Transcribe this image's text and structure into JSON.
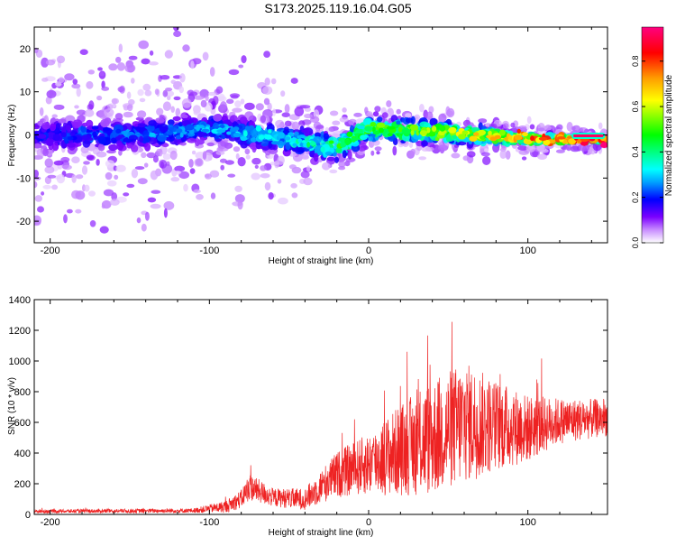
{
  "title": "S173.2025.119.16.04.G05",
  "chart_data": [
    {
      "type": "heatmap",
      "xlabel": "Height of straight line (km)",
      "ylabel": "Frequency (Hz)",
      "xlim": [
        -210,
        150
      ],
      "ylim": [
        -25,
        25
      ],
      "xticks": [
        -200,
        -100,
        0,
        100
      ],
      "yticks": [
        -20,
        -10,
        0,
        10,
        20
      ],
      "colorbar": {
        "label": "Normalized spectral amplitude",
        "range": [
          0,
          0.95
        ],
        "ticks": [
          0.0,
          0.2,
          0.4,
          0.6,
          0.8
        ],
        "tick_labels": [
          "0.0",
          "0.2",
          "0.4",
          "0.6",
          "0.8"
        ],
        "colors": [
          "#ffffff",
          "#c88cff",
          "#7a00ff",
          "#0000ff",
          "#00a0ff",
          "#00ffff",
          "#00ff80",
          "#00ff00",
          "#80ff00",
          "#ffff00",
          "#ffa000",
          "#ff0000",
          "#ff0080"
        ]
      },
      "ridge_profile": {
        "x": [
          -210,
          -150,
          -100,
          -50,
          -20,
          0,
          50,
          100,
          150
        ],
        "center_hz": [
          0,
          0,
          1.5,
          -1,
          -3,
          1.5,
          0.5,
          -1,
          -1
        ],
        "peak_amplitude": [
          0.25,
          0.3,
          0.3,
          0.35,
          0.5,
          0.55,
          0.6,
          0.8,
          0.92
        ],
        "halfwidth_hz": [
          4,
          4,
          4,
          4,
          4,
          3.5,
          3,
          1.5,
          0.8
        ],
        "scatter_halfwidth_hz": [
          25,
          22,
          20,
          12,
          7,
          6,
          6,
          4,
          3
        ]
      }
    },
    {
      "type": "line",
      "xlabel": "Height of straight line (km)",
      "ylabel": "SNR (10 * v/v)",
      "xlim": [
        -210,
        150
      ],
      "ylim": [
        0,
        1400
      ],
      "xticks": [
        -200,
        -100,
        0,
        100
      ],
      "yticks": [
        0,
        200,
        400,
        600,
        800,
        1000,
        1200,
        1400
      ],
      "color": "#ee2222",
      "envelope": {
        "x": [
          -210,
          -110,
          -90,
          -80,
          -75,
          -60,
          -40,
          -20,
          0,
          20,
          40,
          60,
          80,
          100,
          120,
          150
        ],
        "mean": [
          20,
          25,
          50,
          100,
          180,
          110,
          100,
          260,
          330,
          420,
          500,
          600,
          580,
          560,
          610,
          630
        ],
        "spread": [
          12,
          15,
          40,
          60,
          90,
          60,
          70,
          150,
          200,
          300,
          380,
          400,
          300,
          220,
          150,
          120
        ]
      }
    }
  ]
}
